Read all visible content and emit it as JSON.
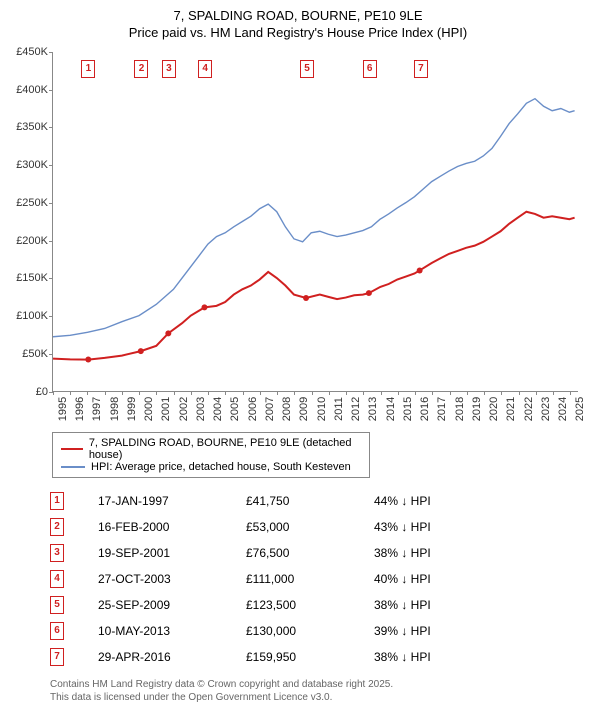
{
  "title_line1": "7, SPALDING ROAD, BOURNE, PE10 9LE",
  "title_line2": "Price paid vs. HM Land Registry's House Price Index (HPI)",
  "chart": {
    "type": "line",
    "x_start": 1995,
    "x_end": 2025.5,
    "x_ticks": [
      1995,
      1996,
      1997,
      1998,
      1999,
      2000,
      2001,
      2002,
      2003,
      2004,
      2005,
      2006,
      2007,
      2008,
      2009,
      2010,
      2011,
      2012,
      2013,
      2014,
      2015,
      2016,
      2017,
      2018,
      2019,
      2020,
      2021,
      2022,
      2023,
      2024,
      2025
    ],
    "y_min": 0,
    "y_max": 450000,
    "y_ticks": [
      0,
      50000,
      100000,
      150000,
      200000,
      250000,
      300000,
      350000,
      400000,
      450000
    ],
    "y_tick_labels": [
      "£0",
      "£50K",
      "£100K",
      "£150K",
      "£200K",
      "£250K",
      "£300K",
      "£350K",
      "£400K",
      "£450K"
    ],
    "series": [
      {
        "name": "paid",
        "color": "#d02020",
        "width": 2,
        "points": [
          [
            1995.0,
            43000
          ],
          [
            1996.0,
            42000
          ],
          [
            1997.05,
            41750
          ],
          [
            1998.0,
            44000
          ],
          [
            1999.0,
            47000
          ],
          [
            2000.1,
            53000
          ],
          [
            2001.0,
            60000
          ],
          [
            2001.7,
            76500
          ],
          [
            2002.5,
            90000
          ],
          [
            2003.0,
            100000
          ],
          [
            2003.8,
            111000
          ],
          [
            2004.5,
            113000
          ],
          [
            2005.0,
            118000
          ],
          [
            2005.5,
            128000
          ],
          [
            2006.0,
            135000
          ],
          [
            2006.5,
            140000
          ],
          [
            2007.0,
            148000
          ],
          [
            2007.5,
            158000
          ],
          [
            2008.0,
            150000
          ],
          [
            2008.5,
            140000
          ],
          [
            2009.0,
            128000
          ],
          [
            2009.7,
            123500
          ],
          [
            2010.5,
            128000
          ],
          [
            2011.0,
            125000
          ],
          [
            2011.5,
            122000
          ],
          [
            2012.0,
            124000
          ],
          [
            2012.5,
            127000
          ],
          [
            2013.0,
            128000
          ],
          [
            2013.35,
            130000
          ],
          [
            2014.0,
            138000
          ],
          [
            2014.5,
            142000
          ],
          [
            2015.0,
            148000
          ],
          [
            2015.5,
            152000
          ],
          [
            2016.0,
            156000
          ],
          [
            2016.3,
            159950
          ],
          [
            2017.0,
            170000
          ],
          [
            2017.5,
            176000
          ],
          [
            2018.0,
            182000
          ],
          [
            2018.5,
            186000
          ],
          [
            2019.0,
            190000
          ],
          [
            2019.5,
            193000
          ],
          [
            2020.0,
            198000
          ],
          [
            2020.5,
            205000
          ],
          [
            2021.0,
            212000
          ],
          [
            2021.5,
            222000
          ],
          [
            2022.0,
            230000
          ],
          [
            2022.5,
            238000
          ],
          [
            2023.0,
            235000
          ],
          [
            2023.5,
            230000
          ],
          [
            2024.0,
            232000
          ],
          [
            2024.5,
            230000
          ],
          [
            2025.0,
            228000
          ],
          [
            2025.3,
            230000
          ]
        ]
      },
      {
        "name": "hpi",
        "color": "#6a8ec8",
        "width": 1.4,
        "points": [
          [
            1995.0,
            72000
          ],
          [
            1996.0,
            74000
          ],
          [
            1997.0,
            78000
          ],
          [
            1998.0,
            83000
          ],
          [
            1999.0,
            92000
          ],
          [
            2000.0,
            100000
          ],
          [
            2001.0,
            115000
          ],
          [
            2002.0,
            135000
          ],
          [
            2002.5,
            150000
          ],
          [
            2003.0,
            165000
          ],
          [
            2003.5,
            180000
          ],
          [
            2004.0,
            195000
          ],
          [
            2004.5,
            205000
          ],
          [
            2005.0,
            210000
          ],
          [
            2005.5,
            218000
          ],
          [
            2006.0,
            225000
          ],
          [
            2006.5,
            232000
          ],
          [
            2007.0,
            242000
          ],
          [
            2007.5,
            248000
          ],
          [
            2008.0,
            238000
          ],
          [
            2008.5,
            218000
          ],
          [
            2009.0,
            202000
          ],
          [
            2009.5,
            198000
          ],
          [
            2010.0,
            210000
          ],
          [
            2010.5,
            212000
          ],
          [
            2011.0,
            208000
          ],
          [
            2011.5,
            205000
          ],
          [
            2012.0,
            207000
          ],
          [
            2012.5,
            210000
          ],
          [
            2013.0,
            213000
          ],
          [
            2013.5,
            218000
          ],
          [
            2014.0,
            228000
          ],
          [
            2014.5,
            235000
          ],
          [
            2015.0,
            243000
          ],
          [
            2015.5,
            250000
          ],
          [
            2016.0,
            258000
          ],
          [
            2016.5,
            268000
          ],
          [
            2017.0,
            278000
          ],
          [
            2017.5,
            285000
          ],
          [
            2018.0,
            292000
          ],
          [
            2018.5,
            298000
          ],
          [
            2019.0,
            302000
          ],
          [
            2019.5,
            305000
          ],
          [
            2020.0,
            312000
          ],
          [
            2020.5,
            322000
          ],
          [
            2021.0,
            338000
          ],
          [
            2021.5,
            355000
          ],
          [
            2022.0,
            368000
          ],
          [
            2022.5,
            382000
          ],
          [
            2023.0,
            388000
          ],
          [
            2023.5,
            378000
          ],
          [
            2024.0,
            372000
          ],
          [
            2024.5,
            375000
          ],
          [
            2025.0,
            370000
          ],
          [
            2025.3,
            372000
          ]
        ]
      }
    ],
    "markers": [
      {
        "n": "1",
        "x": 1997.05,
        "top": 8
      },
      {
        "n": "2",
        "x": 2000.13,
        "top": 8
      },
      {
        "n": "3",
        "x": 2001.72,
        "top": 8
      },
      {
        "n": "4",
        "x": 2003.82,
        "top": 8
      },
      {
        "n": "5",
        "x": 2009.73,
        "top": 8
      },
      {
        "n": "6",
        "x": 2013.36,
        "top": 8
      },
      {
        "n": "7",
        "x": 2016.33,
        "top": 8
      }
    ]
  },
  "legend": {
    "paid_label": "7, SPALDING ROAD, BOURNE, PE10 9LE (detached house)",
    "paid_color": "#d02020",
    "hpi_label": "HPI: Average price, detached house, South Kesteven",
    "hpi_color": "#6a8ec8"
  },
  "table": [
    {
      "n": "1",
      "date": "17-JAN-1997",
      "price": "£41,750",
      "pct": "44% ↓ HPI"
    },
    {
      "n": "2",
      "date": "16-FEB-2000",
      "price": "£53,000",
      "pct": "43% ↓ HPI"
    },
    {
      "n": "3",
      "date": "19-SEP-2001",
      "price": "£76,500",
      "pct": "38% ↓ HPI"
    },
    {
      "n": "4",
      "date": "27-OCT-2003",
      "price": "£111,000",
      "pct": "40% ↓ HPI"
    },
    {
      "n": "5",
      "date": "25-SEP-2009",
      "price": "£123,500",
      "pct": "38% ↓ HPI"
    },
    {
      "n": "6",
      "date": "10-MAY-2013",
      "price": "£130,000",
      "pct": "39% ↓ HPI"
    },
    {
      "n": "7",
      "date": "29-APR-2016",
      "price": "£159,950",
      "pct": "38% ↓ HPI"
    }
  ],
  "footer_line1": "Contains HM Land Registry data © Crown copyright and database right 2025.",
  "footer_line2": "This data is licensed under the Open Government Licence v3.0."
}
